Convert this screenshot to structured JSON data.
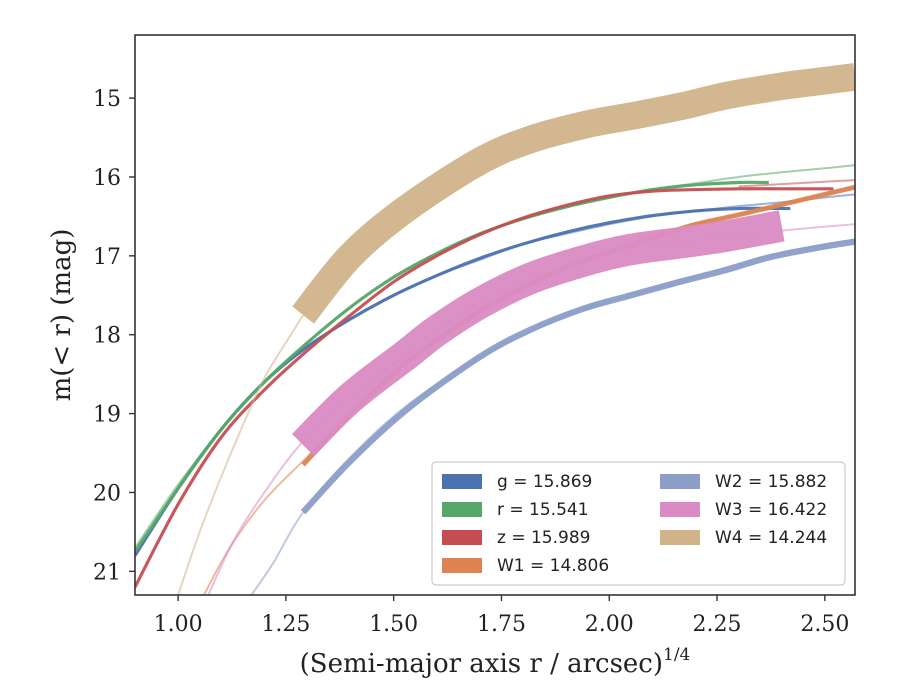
{
  "chart_data": {
    "type": "line",
    "xlabel": "(Semi-major axis r / arcsec)",
    "xlabel_exponent": "1/4",
    "ylabel": "m(< r) (mag)",
    "xlim": [
      0.9,
      2.57
    ],
    "ylim": [
      21.3,
      14.2
    ],
    "y_inverted": true,
    "grid": false,
    "legend_position": "lower-right",
    "xticks": [
      "1.00",
      "1.25",
      "1.50",
      "1.75",
      "2.00",
      "2.25",
      "2.50"
    ],
    "yticks": [
      "15",
      "16",
      "17",
      "18",
      "19",
      "20",
      "21"
    ],
    "series": [
      {
        "name": "g",
        "legend": "g = 15.869",
        "color": "#4c72b0",
        "band_width": 0.04,
        "faint": {
          "x": [
            0.9,
            1.0,
            1.1,
            1.2,
            1.3,
            1.4,
            1.5,
            1.6,
            1.7,
            1.8,
            1.9,
            2.0,
            2.1,
            2.2,
            2.3,
            2.4,
            2.5,
            2.57
          ],
          "y": [
            20.8,
            19.95,
            19.2,
            18.6,
            18.15,
            17.8,
            17.5,
            17.25,
            17.05,
            16.85,
            16.72,
            16.6,
            16.5,
            16.43,
            16.37,
            16.32,
            16.26,
            16.22
          ]
        },
        "band": {
          "x": [
            0.9,
            1.0,
            1.1,
            1.2,
            1.3,
            1.4,
            1.5,
            1.6,
            1.7,
            1.8,
            1.9,
            2.0,
            2.1,
            2.2,
            2.3,
            2.42
          ],
          "y": [
            20.8,
            19.95,
            19.2,
            18.6,
            18.15,
            17.8,
            17.5,
            17.25,
            17.03,
            16.85,
            16.7,
            16.58,
            16.49,
            16.43,
            16.4,
            16.4
          ]
        }
      },
      {
        "name": "r",
        "legend": "r = 15.541",
        "color": "#55a868",
        "band_width": 0.04,
        "faint": {
          "x": [
            0.9,
            1.0,
            1.1,
            1.2,
            1.3,
            1.4,
            1.5,
            1.6,
            1.7,
            1.8,
            1.9,
            2.0,
            2.1,
            2.2,
            2.3,
            2.4,
            2.5,
            2.57
          ],
          "y": [
            20.7,
            19.9,
            19.2,
            18.6,
            18.1,
            17.65,
            17.28,
            16.97,
            16.72,
            16.53,
            16.38,
            16.26,
            16.16,
            16.08,
            16.0,
            15.94,
            15.89,
            15.85
          ]
        },
        "band": {
          "x": [
            0.9,
            1.0,
            1.1,
            1.2,
            1.3,
            1.4,
            1.5,
            1.6,
            1.7,
            1.8,
            1.9,
            2.0,
            2.1,
            2.2,
            2.3,
            2.37
          ],
          "y": [
            20.75,
            19.95,
            19.2,
            18.6,
            18.1,
            17.65,
            17.27,
            16.97,
            16.72,
            16.53,
            16.38,
            16.26,
            16.16,
            16.1,
            16.07,
            16.07
          ]
        }
      },
      {
        "name": "z",
        "legend": "z = 15.989",
        "color": "#c44e52",
        "band_width": 0.04,
        "faint": {
          "x": [
            2.3,
            2.4,
            2.5,
            2.57
          ],
          "y": [
            16.12,
            16.09,
            16.06,
            16.04
          ]
        },
        "band": {
          "x": [
            0.9,
            1.0,
            1.1,
            1.2,
            1.3,
            1.4,
            1.5,
            1.6,
            1.7,
            1.8,
            1.9,
            2.0,
            2.1,
            2.2,
            2.3,
            2.4,
            2.52
          ],
          "y": [
            21.2,
            20.15,
            19.3,
            18.7,
            18.2,
            17.75,
            17.33,
            17.0,
            16.73,
            16.52,
            16.36,
            16.24,
            16.18,
            16.16,
            16.15,
            16.15,
            16.15
          ]
        }
      },
      {
        "name": "W1",
        "legend": "W1 = 14.806",
        "color": "#dd8452",
        "band_width": 0.06,
        "faint": {
          "x": [
            1.06,
            1.12,
            1.2,
            1.29,
            1.4,
            1.53,
            1.6,
            1.7,
            1.8,
            1.9,
            2.0,
            2.1,
            2.2,
            2.3,
            2.4,
            2.5,
            2.57
          ],
          "y": [
            21.3,
            20.7,
            20.1,
            19.6,
            19.0,
            18.35,
            18.07,
            17.7,
            17.4,
            17.15,
            16.95,
            16.77,
            16.6,
            16.48,
            16.35,
            16.22,
            16.13
          ]
        },
        "band": {
          "x": [
            1.29,
            1.4,
            1.53,
            1.6,
            1.7,
            1.8,
            1.9,
            2.0,
            2.1,
            2.2,
            2.3,
            2.4,
            2.5,
            2.57
          ],
          "y": [
            19.65,
            19.0,
            18.35,
            18.07,
            17.7,
            17.4,
            17.15,
            16.95,
            16.77,
            16.6,
            16.48,
            16.35,
            16.22,
            16.13
          ]
        }
      },
      {
        "name": "W2",
        "legend": "W2 = 15.882",
        "color": "#8c9ec8",
        "band_width": 0.08,
        "faint": {
          "x": [
            1.17,
            1.22,
            1.29,
            1.4,
            1.53,
            1.7,
            1.82,
            1.94,
            2.05,
            2.17,
            2.27,
            2.37,
            2.48,
            2.57
          ],
          "y": [
            21.3,
            20.9,
            20.25,
            19.55,
            18.9,
            18.28,
            17.95,
            17.68,
            17.5,
            17.32,
            17.15,
            17.0,
            16.88,
            16.8
          ]
        },
        "band": {
          "x": [
            1.29,
            1.4,
            1.53,
            1.7,
            1.82,
            1.94,
            2.05,
            2.17,
            2.27,
            2.37,
            2.48,
            2.57
          ],
          "y": [
            20.25,
            19.6,
            18.95,
            18.28,
            17.93,
            17.67,
            17.5,
            17.32,
            17.18,
            17.02,
            16.9,
            16.82
          ]
        }
      },
      {
        "name": "W3",
        "legend": "W3 = 16.422",
        "color": "#da8bc3",
        "band_width": 0.4,
        "faint": {
          "x": [
            1.07,
            1.13,
            1.2,
            1.29,
            1.4,
            1.53,
            1.6,
            1.7,
            1.82,
            1.95,
            2.05,
            2.17,
            2.27,
            2.4,
            2.5,
            2.57
          ],
          "y": [
            21.3,
            20.6,
            20.0,
            19.35,
            18.8,
            18.25,
            17.95,
            17.6,
            17.28,
            17.05,
            16.9,
            16.83,
            16.75,
            16.68,
            16.63,
            16.6
          ]
        },
        "band": {
          "x": [
            1.29,
            1.4,
            1.53,
            1.6,
            1.7,
            1.82,
            1.95,
            2.05,
            2.17,
            2.27,
            2.4
          ],
          "y": [
            19.4,
            18.8,
            18.25,
            17.95,
            17.6,
            17.28,
            17.05,
            16.92,
            16.83,
            16.75,
            16.62
          ]
        }
      },
      {
        "name": "W4",
        "legend": "W4 = 14.244",
        "color": "#d1b38a",
        "band_width": 0.35,
        "faint": {
          "x": [
            1.0,
            1.05,
            1.1,
            1.15,
            1.2,
            1.25,
            1.29
          ],
          "y": [
            21.3,
            20.5,
            19.8,
            19.15,
            18.55,
            18.1,
            17.75
          ]
        },
        "band": {
          "x": [
            1.29,
            1.4,
            1.53,
            1.7,
            1.82,
            1.95,
            2.05,
            2.17,
            2.27,
            2.4,
            2.5,
            2.57
          ],
          "y": [
            17.75,
            17.0,
            16.4,
            15.8,
            15.52,
            15.33,
            15.23,
            15.1,
            14.97,
            14.85,
            14.78,
            14.73
          ]
        }
      }
    ]
  }
}
